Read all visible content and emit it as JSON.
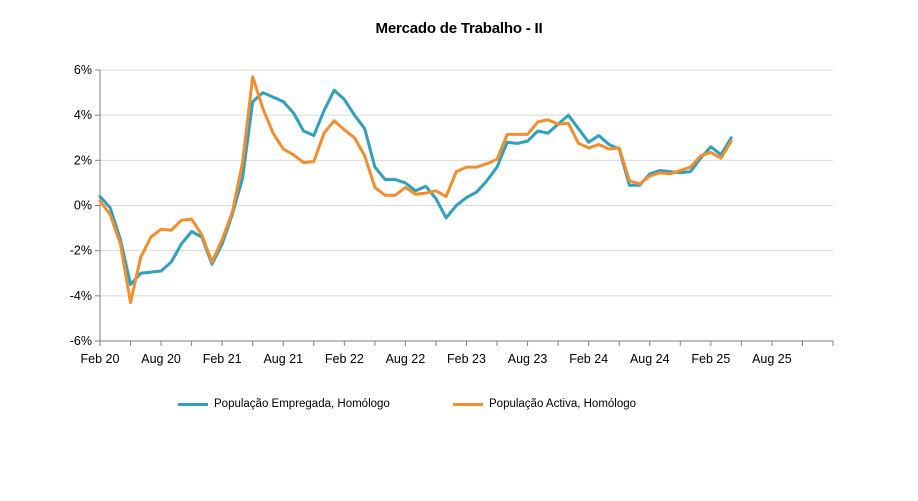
{
  "chart_data": {
    "type": "line",
    "title": "Mercado de Trabalho - II",
    "xlabel": "",
    "ylabel": "",
    "ylim": [
      -6,
      6
    ],
    "y_ticks": [
      "-6%",
      "-4%",
      "-2%",
      "0%",
      "2%",
      "4%",
      "6%"
    ],
    "x_tick_labels": [
      "Feb 20",
      "Aug 20",
      "Feb 21",
      "Aug 21",
      "Feb 22",
      "Aug 22",
      "Feb 23",
      "Aug 23",
      "Feb 24",
      "Aug 24",
      "Feb 25",
      "Aug 25"
    ],
    "x_range_months": [
      "2020-02",
      "2026-02"
    ],
    "grid": "horizontal",
    "legend_position": "bottom",
    "series": [
      {
        "name": "População Empregada, Homólogo",
        "color": "#2FA0BE",
        "start": "2020-02",
        "values": [
          0.4,
          -0.1,
          -1.5,
          -3.5,
          -3.0,
          -2.95,
          -2.9,
          -2.5,
          -1.7,
          -1.15,
          -1.4,
          -2.6,
          -1.7,
          -0.4,
          1.2,
          4.6,
          5.0,
          4.8,
          4.6,
          4.1,
          3.3,
          3.1,
          4.2,
          5.1,
          4.7,
          4.0,
          3.4,
          1.7,
          1.15,
          1.15,
          1.0,
          0.65,
          0.85,
          0.3,
          -0.55,
          0.0,
          0.35,
          0.6,
          1.1,
          1.7,
          2.8,
          2.75,
          2.85,
          3.3,
          3.2,
          3.6,
          4.0,
          3.4,
          2.8,
          3.1,
          2.7,
          2.5,
          0.9,
          0.9,
          1.4,
          1.55,
          1.5,
          1.45,
          1.5,
          2.1,
          2.6,
          2.25,
          3.0
        ]
      },
      {
        "name": "População Activa, Homólogo",
        "color": "#F28E2E",
        "start": "2020-02",
        "values": [
          0.2,
          -0.4,
          -1.7,
          -4.3,
          -2.3,
          -1.4,
          -1.05,
          -1.1,
          -0.65,
          -0.6,
          -1.3,
          -2.5,
          -1.5,
          -0.3,
          1.9,
          5.7,
          4.3,
          3.2,
          2.5,
          2.25,
          1.9,
          1.95,
          3.2,
          3.75,
          3.35,
          3.0,
          2.2,
          0.8,
          0.45,
          0.45,
          0.8,
          0.5,
          0.55,
          0.65,
          0.4,
          1.5,
          1.7,
          1.7,
          1.85,
          2.05,
          3.15,
          3.15,
          3.15,
          3.7,
          3.8,
          3.6,
          3.65,
          2.75,
          2.55,
          2.7,
          2.5,
          2.55,
          1.1,
          0.95,
          1.3,
          1.45,
          1.4,
          1.55,
          1.7,
          2.2,
          2.35,
          2.1,
          2.85
        ]
      }
    ]
  }
}
